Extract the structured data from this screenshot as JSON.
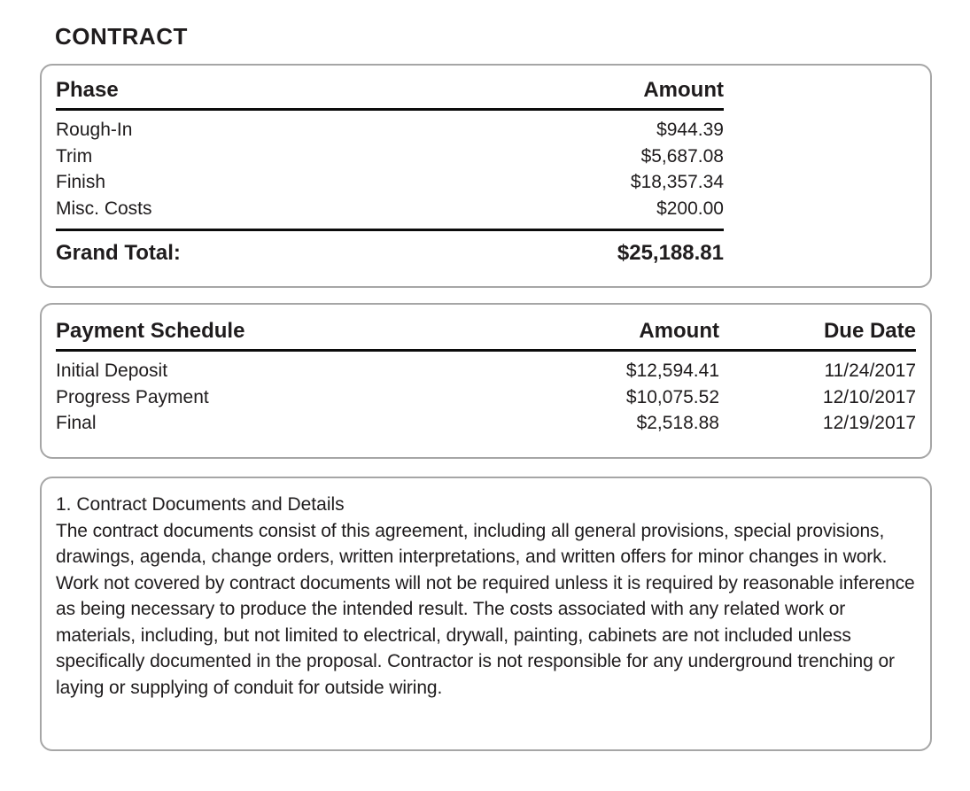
{
  "page": {
    "title": "CONTRACT"
  },
  "colors": {
    "text": "#1f1c1d",
    "card_border": "#a6a6a6",
    "table_rule": "#0c0c0c",
    "background": "#ffffff"
  },
  "contract_table": {
    "headers": {
      "phase": "Phase",
      "amount": "Amount"
    },
    "rows": [
      {
        "phase": "Rough-In",
        "amount": "$944.39"
      },
      {
        "phase": "Trim",
        "amount": "$5,687.08"
      },
      {
        "phase": "Finish",
        "amount": "$18,357.34"
      },
      {
        "phase": "Misc. Costs",
        "amount": "$200.00"
      }
    ],
    "grand_total_label": "Grand Total:",
    "grand_total_value": "$25,188.81"
  },
  "payment_schedule": {
    "headers": {
      "name": "Payment Schedule",
      "amount": "Amount",
      "due_date": "Due Date"
    },
    "rows": [
      {
        "name": "Initial Deposit",
        "amount": "$12,594.41",
        "due_date": "11/24/2017"
      },
      {
        "name": "Progress Payment",
        "amount": "$10,075.52",
        "due_date": "12/10/2017"
      },
      {
        "name": "Final",
        "amount": "$2,518.88",
        "due_date": "12/19/2017"
      }
    ]
  },
  "terms": {
    "heading": "1. Contract Documents and Details",
    "body": "The contract documents consist of this agreement, including all general provisions, special provisions, drawings, agenda, change orders, written interpretations, and written offers for minor changes in work. Work not covered by contract documents will not be required unless it is required by reasonable inference as being necessary to produce the intended result. The costs associated with any related work or materials, including, but not limited to electrical, drywall, painting, cabinets are not included unless specifically documented in the proposal. Contractor is not responsible for any underground trenching or laying or supplying of conduit for outside wiring."
  }
}
